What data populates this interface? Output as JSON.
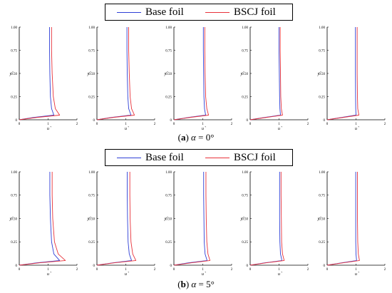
{
  "colors": {
    "base": "#2f3fd6",
    "bscj": "#e8323a"
  },
  "legend": {
    "base_label": "Base foil",
    "bscj_label": "BSCJ foil"
  },
  "captions": [
    {
      "tag": "a",
      "alpha_sym": "α",
      "rest": " = 0°"
    },
    {
      "tag": "b",
      "alpha_sym": "α",
      "rest": " = 5°"
    }
  ],
  "chart_data": [
    {
      "type": "line",
      "title": "",
      "xlabel": "u+",
      "ylabel": "y+",
      "xlim": [
        0,
        2
      ],
      "ylim": [
        0,
        1.0
      ],
      "xticks": [
        "0",
        "1",
        "2"
      ],
      "yticks": [
        "0",
        "0.25",
        "0.50",
        "0.75",
        "1.00"
      ],
      "series": [
        {
          "name": "Base foil",
          "x": [
            0,
            0.5,
            1.2,
            1.12,
            1.08,
            1.06,
            1.05,
            1.05
          ],
          "y": [
            0,
            0.025,
            0.05,
            0.12,
            0.25,
            0.5,
            0.75,
            1.0
          ]
        },
        {
          "name": "BSCJ foil",
          "x": [
            0,
            0.6,
            1.4,
            1.25,
            1.18,
            1.14,
            1.12,
            1.12
          ],
          "y": [
            0,
            0.025,
            0.05,
            0.12,
            0.25,
            0.5,
            0.75,
            1.0
          ]
        }
      ]
    },
    {
      "type": "line",
      "title": "",
      "xlabel": "u+",
      "ylabel": "y+",
      "xlim": [
        0,
        2
      ],
      "ylim": [
        0,
        1.0
      ],
      "xticks": [
        "0",
        "1",
        "2"
      ],
      "yticks": [
        "0",
        "0.25",
        "0.50",
        "0.75",
        "1.00"
      ],
      "series": [
        {
          "name": "Base foil",
          "x": [
            0,
            0.5,
            1.18,
            1.1,
            1.07,
            1.05,
            1.04,
            1.04
          ],
          "y": [
            0,
            0.025,
            0.05,
            0.12,
            0.25,
            0.5,
            0.75,
            1.0
          ]
        },
        {
          "name": "BSCJ foil",
          "x": [
            0,
            0.55,
            1.3,
            1.2,
            1.15,
            1.12,
            1.1,
            1.1
          ],
          "y": [
            0,
            0.025,
            0.05,
            0.12,
            0.25,
            0.5,
            0.75,
            1.0
          ]
        }
      ]
    },
    {
      "type": "line",
      "title": "",
      "xlabel": "u+",
      "ylabel": "y+",
      "xlim": [
        0,
        2
      ],
      "ylim": [
        0,
        1.0
      ],
      "xticks": [
        "0",
        "1",
        "2"
      ],
      "yticks": [
        "0",
        "0.25",
        "0.50",
        "0.75",
        "1.00"
      ],
      "series": [
        {
          "name": "Base foil",
          "x": [
            0,
            0.5,
            1.1,
            1.06,
            1.04,
            1.03,
            1.02,
            1.02
          ],
          "y": [
            0,
            0.025,
            0.05,
            0.12,
            0.25,
            0.5,
            0.75,
            1.0
          ]
        },
        {
          "name": "BSCJ foil",
          "x": [
            0,
            0.55,
            1.2,
            1.14,
            1.1,
            1.08,
            1.07,
            1.07
          ],
          "y": [
            0,
            0.025,
            0.05,
            0.12,
            0.25,
            0.5,
            0.75,
            1.0
          ]
        }
      ]
    },
    {
      "type": "line",
      "title": "",
      "xlabel": "u+",
      "ylabel": "y+",
      "xlim": [
        0,
        2
      ],
      "ylim": [
        0,
        1.0
      ],
      "xticks": [
        "0",
        "1",
        "2"
      ],
      "yticks": [
        "0",
        "0.25",
        "0.50",
        "0.75",
        "1.00"
      ],
      "series": [
        {
          "name": "Base foil",
          "x": [
            0,
            0.5,
            1.05,
            1.03,
            1.02,
            1.01,
            1.0,
            1.0
          ],
          "y": [
            0,
            0.025,
            0.05,
            0.12,
            0.25,
            0.5,
            0.75,
            1.0
          ]
        },
        {
          "name": "BSCJ foil",
          "x": [
            0,
            0.55,
            1.12,
            1.08,
            1.06,
            1.05,
            1.04,
            1.04
          ],
          "y": [
            0,
            0.025,
            0.05,
            0.12,
            0.25,
            0.5,
            0.75,
            1.0
          ]
        }
      ]
    },
    {
      "type": "line",
      "title": "",
      "xlabel": "u+",
      "ylabel": "y+",
      "xlim": [
        0,
        2
      ],
      "ylim": [
        0,
        1.0
      ],
      "xticks": [
        "0",
        "1",
        "2"
      ],
      "yticks": [
        "0",
        "0.25",
        "0.50",
        "0.75",
        "1.00"
      ],
      "series": [
        {
          "name": "Base foil",
          "x": [
            0,
            0.5,
            1.0,
            0.99,
            0.985,
            0.98,
            0.98,
            0.98
          ],
          "y": [
            0,
            0.025,
            0.05,
            0.12,
            0.25,
            0.5,
            0.75,
            1.0
          ]
        },
        {
          "name": "BSCJ foil",
          "x": [
            0,
            0.55,
            1.1,
            1.06,
            1.05,
            1.04,
            1.04,
            1.04
          ],
          "y": [
            0,
            0.025,
            0.05,
            0.12,
            0.25,
            0.5,
            0.75,
            1.0
          ]
        }
      ]
    },
    {
      "type": "line",
      "title": "",
      "xlabel": "u+",
      "ylabel": "y+",
      "xlim": [
        0,
        2
      ],
      "ylim": [
        0,
        1.0
      ],
      "xticks": [
        "0",
        "1",
        "2"
      ],
      "yticks": [
        "0",
        "0.25",
        "0.50",
        "0.75",
        "1.00"
      ],
      "series": [
        {
          "name": "Base foil",
          "x": [
            0,
            0.6,
            1.4,
            1.2,
            1.12,
            1.08,
            1.06,
            1.06
          ],
          "y": [
            0,
            0.025,
            0.05,
            0.12,
            0.25,
            0.5,
            0.75,
            1.0
          ]
        },
        {
          "name": "BSCJ foil",
          "x": [
            0,
            0.7,
            1.6,
            1.35,
            1.22,
            1.16,
            1.14,
            1.14
          ],
          "y": [
            0,
            0.025,
            0.05,
            0.12,
            0.25,
            0.5,
            0.75,
            1.0
          ]
        }
      ]
    },
    {
      "type": "line",
      "title": "",
      "xlabel": "u+",
      "ylabel": "y+",
      "xlim": [
        0,
        2
      ],
      "ylim": [
        0,
        1.0
      ],
      "xticks": [
        "0",
        "1",
        "2"
      ],
      "yticks": [
        "0",
        "0.25",
        "0.50",
        "0.75",
        "1.00"
      ],
      "series": [
        {
          "name": "Base foil",
          "x": [
            0,
            0.55,
            1.2,
            1.12,
            1.08,
            1.06,
            1.05,
            1.05
          ],
          "y": [
            0,
            0.025,
            0.05,
            0.12,
            0.25,
            0.5,
            0.75,
            1.0
          ]
        },
        {
          "name": "BSCJ foil",
          "x": [
            0,
            0.6,
            1.35,
            1.24,
            1.18,
            1.15,
            1.14,
            1.14
          ],
          "y": [
            0,
            0.025,
            0.05,
            0.12,
            0.25,
            0.5,
            0.75,
            1.0
          ]
        }
      ]
    },
    {
      "type": "line",
      "title": "",
      "xlabel": "u+",
      "ylabel": "y+",
      "xlim": [
        0,
        2
      ],
      "ylim": [
        0,
        1.0
      ],
      "xticks": [
        "0",
        "1",
        "2"
      ],
      "yticks": [
        "0",
        "0.25",
        "0.50",
        "0.75",
        "1.00"
      ],
      "series": [
        {
          "name": "Base foil",
          "x": [
            0,
            0.5,
            1.15,
            1.08,
            1.05,
            1.04,
            1.03,
            1.03
          ],
          "y": [
            0,
            0.025,
            0.05,
            0.12,
            0.25,
            0.5,
            0.75,
            1.0
          ]
        },
        {
          "name": "BSCJ foil",
          "x": [
            0,
            0.6,
            1.25,
            1.18,
            1.14,
            1.12,
            1.11,
            1.11
          ],
          "y": [
            0,
            0.025,
            0.05,
            0.12,
            0.25,
            0.5,
            0.75,
            1.0
          ]
        }
      ]
    },
    {
      "type": "line",
      "title": "",
      "xlabel": "u+",
      "ylabel": "y+",
      "xlim": [
        0,
        2
      ],
      "ylim": [
        0,
        1.0
      ],
      "xticks": [
        "0",
        "1",
        "2"
      ],
      "yticks": [
        "0",
        "0.25",
        "0.50",
        "0.75",
        "1.00"
      ],
      "series": [
        {
          "name": "Base foil",
          "x": [
            0,
            0.5,
            1.1,
            1.05,
            1.03,
            1.02,
            1.02,
            1.02
          ],
          "y": [
            0,
            0.025,
            0.05,
            0.12,
            0.25,
            0.5,
            0.75,
            1.0
          ]
        },
        {
          "name": "BSCJ foil",
          "x": [
            0,
            0.55,
            1.18,
            1.12,
            1.09,
            1.08,
            1.07,
            1.07
          ],
          "y": [
            0,
            0.025,
            0.05,
            0.12,
            0.25,
            0.5,
            0.75,
            1.0
          ]
        }
      ]
    },
    {
      "type": "line",
      "title": "",
      "xlabel": "u+",
      "ylabel": "y+",
      "xlim": [
        0,
        2
      ],
      "ylim": [
        0,
        1.0
      ],
      "xticks": [
        "0",
        "1",
        "2"
      ],
      "yticks": [
        "0",
        "0.25",
        "0.50",
        "0.75",
        "1.00"
      ],
      "series": [
        {
          "name": "Base foil",
          "x": [
            0,
            0.5,
            1.02,
            1.0,
            0.99,
            0.99,
            0.99,
            0.99
          ],
          "y": [
            0,
            0.025,
            0.05,
            0.12,
            0.25,
            0.5,
            0.75,
            1.0
          ]
        },
        {
          "name": "BSCJ foil",
          "x": [
            0,
            0.55,
            1.12,
            1.08,
            1.06,
            1.05,
            1.05,
            1.05
          ],
          "y": [
            0,
            0.025,
            0.05,
            0.12,
            0.25,
            0.5,
            0.75,
            1.0
          ]
        }
      ]
    }
  ]
}
